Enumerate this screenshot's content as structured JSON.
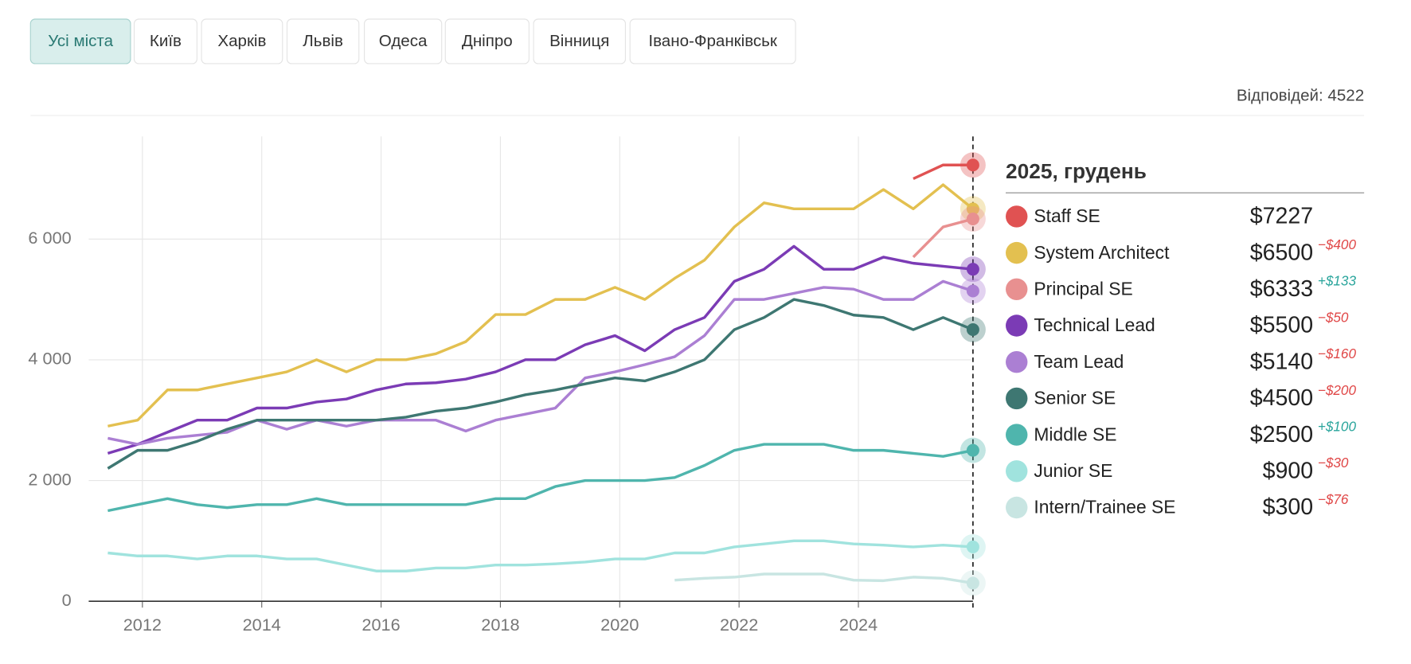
{
  "tabs": [
    "Усі міста",
    "Київ",
    "Харків",
    "Львів",
    "Одеса",
    "Дніпро",
    "Вінниця",
    "Івано-Франківськ"
  ],
  "active_tab": 0,
  "responses": "Відповідей: 4522",
  "chart_data": {
    "type": "line",
    "legend_title": "2025, грудень",
    "x": [
      2011.42,
      2011.92,
      2012.42,
      2012.92,
      2013.42,
      2013.92,
      2014.42,
      2014.92,
      2015.42,
      2015.92,
      2016.42,
      2016.92,
      2017.42,
      2017.92,
      2018.42,
      2018.92,
      2019.42,
      2019.92,
      2020.42,
      2020.92,
      2021.42,
      2021.92,
      2022.42,
      2022.92,
      2023.42,
      2023.92,
      2024.42,
      2024.92,
      2025.42,
      2025.92
    ],
    "xlim": [
      2011.1,
      2025.92
    ],
    "xticks": [
      2012,
      2014,
      2016,
      2018,
      2020,
      2022,
      2024
    ],
    "ylim": [
      0,
      7700
    ],
    "yticks": [
      0,
      {
        "value": 2000,
        "label": "2 000"
      },
      {
        "value": 4000,
        "label": "4 000"
      },
      {
        "value": 6000,
        "label": "6 000"
      }
    ],
    "grid": true,
    "series": [
      {
        "name": "Staff SE",
        "color": "#e05252",
        "latest_label": "$7227",
        "values": [
          null,
          null,
          null,
          null,
          null,
          null,
          null,
          null,
          null,
          null,
          null,
          null,
          null,
          null,
          null,
          null,
          null,
          null,
          null,
          null,
          null,
          null,
          null,
          null,
          null,
          null,
          null,
          7000,
          7227,
          7227
        ]
      },
      {
        "name": "System Architect",
        "color": "#e3c050",
        "latest_label": "$6500",
        "change_label": "−$400",
        "values": [
          2900,
          3000,
          3500,
          3500,
          3600,
          3700,
          3800,
          4000,
          3800,
          4000,
          4000,
          4100,
          4300,
          4750,
          4750,
          5000,
          5000,
          5200,
          5000,
          5350,
          5650,
          6200,
          6600,
          6500,
          6500,
          6500,
          6820,
          6500,
          6900,
          6500
        ]
      },
      {
        "name": "Principal SE",
        "color": "#e89090",
        "latest_label": "$6333",
        "change_label": "+$133",
        "values": [
          null,
          null,
          null,
          null,
          null,
          null,
          null,
          null,
          null,
          null,
          null,
          null,
          null,
          null,
          null,
          null,
          null,
          null,
          null,
          null,
          null,
          null,
          null,
          null,
          null,
          null,
          null,
          5700,
          6200,
          6333
        ]
      },
      {
        "name": "Technical Lead",
        "color": "#7b3bb5",
        "latest_label": "$5500",
        "change_label": "−$50",
        "values": [
          2450,
          2600,
          2800,
          3000,
          3000,
          3200,
          3200,
          3300,
          3350,
          3500,
          3600,
          3620,
          3680,
          3800,
          4000,
          4000,
          4250,
          4400,
          4150,
          4500,
          4700,
          5300,
          5500,
          5880,
          5500,
          5500,
          5700,
          5600,
          5550,
          5500
        ]
      },
      {
        "name": "Team Lead",
        "color": "#ab7fd3",
        "latest_label": "$5140",
        "change_label": "−$160",
        "values": [
          2700,
          2600,
          2700,
          2750,
          2800,
          3000,
          2850,
          3000,
          2900,
          3000,
          3000,
          3000,
          2820,
          3000,
          3100,
          3200,
          3700,
          3800,
          3920,
          4050,
          4400,
          5000,
          5000,
          5100,
          5200,
          5170,
          5000,
          5000,
          5300,
          5140
        ]
      },
      {
        "name": "Senior SE",
        "color": "#3e7772",
        "latest_label": "$4500",
        "change_label": "−$200",
        "values": [
          2200,
          2500,
          2500,
          2650,
          2850,
          3000,
          3000,
          3000,
          3000,
          3000,
          3050,
          3150,
          3200,
          3300,
          3420,
          3500,
          3600,
          3700,
          3650,
          3800,
          4000,
          4500,
          4700,
          5000,
          4900,
          4740,
          4700,
          4500,
          4700,
          4500
        ]
      },
      {
        "name": "Middle SE",
        "color": "#4fb5ad",
        "latest_label": "$2500",
        "change_label": "+$100",
        "values": [
          1500,
          1600,
          1700,
          1600,
          1550,
          1600,
          1600,
          1700,
          1600,
          1600,
          1600,
          1600,
          1600,
          1700,
          1700,
          1900,
          2000,
          2000,
          2000,
          2050,
          2250,
          2500,
          2600,
          2600,
          2600,
          2500,
          2500,
          2450,
          2400,
          2500
        ]
      },
      {
        "name": "Junior SE",
        "color": "#a0e3de",
        "latest_label": "$900",
        "change_label": "−$30",
        "values": [
          800,
          750,
          750,
          700,
          750,
          750,
          700,
          700,
          600,
          500,
          500,
          550,
          550,
          600,
          600,
          620,
          650,
          700,
          700,
          800,
          800,
          900,
          950,
          1000,
          1000,
          950,
          930,
          900,
          930,
          900
        ]
      },
      {
        "name": "Intern/Trainee SE",
        "color": "#c8e5e2",
        "latest_label": "$300",
        "change_label": "−$76",
        "values": [
          null,
          null,
          null,
          null,
          null,
          null,
          null,
          null,
          null,
          null,
          null,
          null,
          null,
          null,
          null,
          null,
          null,
          null,
          null,
          350,
          380,
          400,
          450,
          450,
          450,
          350,
          340,
          400,
          380,
          300
        ]
      }
    ]
  }
}
